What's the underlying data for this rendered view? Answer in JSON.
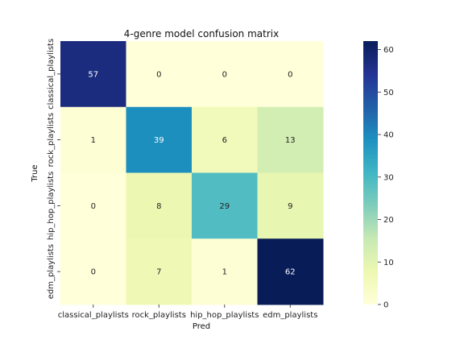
{
  "chart_data": {
    "type": "heatmap",
    "title": "4-genre model confusion matrix",
    "xlabel": "Pred",
    "ylabel": "True",
    "x_categories": [
      "classical_playlists",
      "rock_playlists",
      "hip_hop_playlists",
      "edm_playlists"
    ],
    "y_categories": [
      "classical_playlists",
      "rock_playlists",
      "hip_hop_playlists",
      "edm_playlists"
    ],
    "values": [
      [
        57,
        0,
        0,
        0
      ],
      [
        1,
        39,
        6,
        13
      ],
      [
        0,
        8,
        29,
        9
      ],
      [
        0,
        7,
        1,
        62
      ]
    ],
    "colormap": "YlGnBu",
    "vmin": 0,
    "vmax": 62,
    "colorbar_ticks": [
      0,
      10,
      20,
      30,
      40,
      50,
      60
    ]
  }
}
